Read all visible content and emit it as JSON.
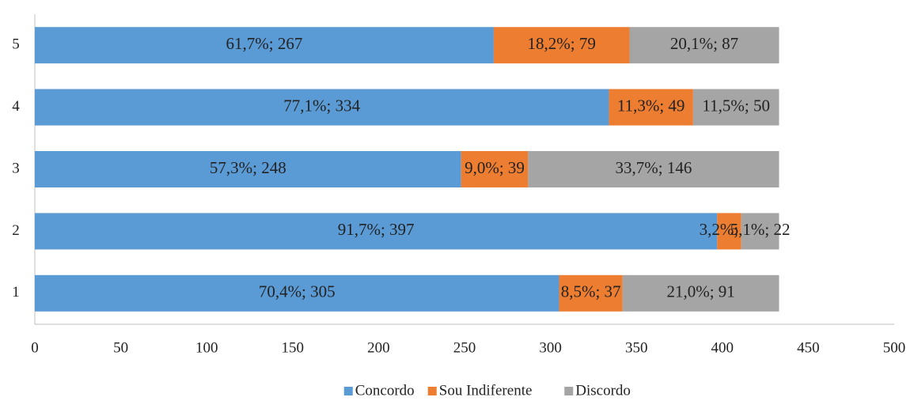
{
  "chart_data": {
    "type": "stacked_barh",
    "categories": [
      "1",
      "2",
      "3",
      "4",
      "5"
    ],
    "series": [
      {
        "name": "Concordo",
        "color": "#5b9bd5",
        "values": [
          305,
          397,
          248,
          334,
          267
        ],
        "value_labels": [
          "70,4%; 305",
          "91,7%; 397",
          "57,3%; 248",
          "77,1%; 334",
          "61,7%; 267"
        ]
      },
      {
        "name": "Sou Indiferente",
        "color": "#ed7d31",
        "values": [
          37,
          14,
          39,
          49,
          79
        ],
        "value_labels": [
          "8,5%; 37",
          "3,2%; 14",
          "9,0%; 39",
          "11,3%; 49",
          "18,2%; 79"
        ]
      },
      {
        "name": "Discordo",
        "color": "#a5a5a5",
        "values": [
          91,
          22,
          146,
          50,
          87
        ],
        "value_labels": [
          "21,0%; 91",
          "5,1%; 22",
          "33,7%; 146",
          "11,5%; 50",
          "20,1%; 87"
        ]
      }
    ],
    "xlim": [
      0,
      500
    ],
    "xticks": [
      0,
      50,
      100,
      150,
      200,
      250,
      300,
      350,
      400,
      450,
      500
    ],
    "legend": "bottom"
  }
}
